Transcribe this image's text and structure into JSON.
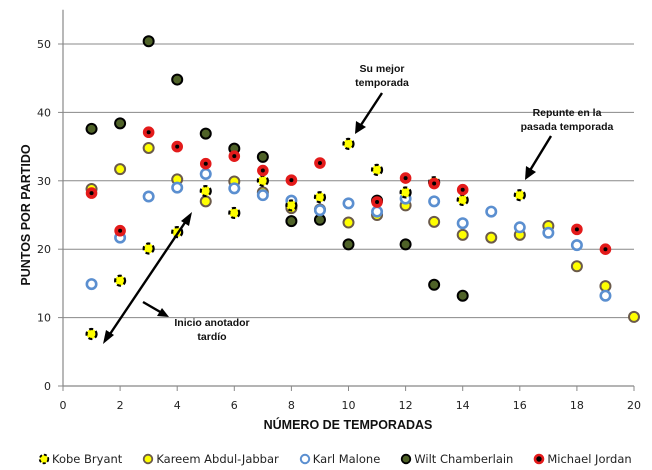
{
  "chart_data": {
    "type": "scatter",
    "title": "",
    "xlabel": "NÚMERO DE TEMPORADAS",
    "ylabel": "PUNTOS POR PARTIDO",
    "xlim": [
      0,
      20
    ],
    "ylim": [
      0,
      55
    ],
    "xticks": [
      0,
      2,
      4,
      6,
      8,
      10,
      12,
      14,
      16,
      18,
      20
    ],
    "yticks": [
      0,
      10,
      20,
      30,
      40,
      50
    ],
    "grid": "horizontal",
    "legend_position": "bottom",
    "series": [
      {
        "name": "Kobe Bryant",
        "marker": "yellow-dashed",
        "colors": {
          "fill": "#ffff00",
          "stroke": "#000000"
        },
        "points": [
          [
            1,
            7.6
          ],
          [
            2,
            15.4
          ],
          [
            3,
            20.1
          ],
          [
            4,
            22.5
          ],
          [
            5,
            28.5
          ],
          [
            6,
            25.3
          ],
          [
            7,
            30.0
          ],
          [
            8,
            26.4
          ],
          [
            9,
            27.6
          ],
          [
            10,
            35.4
          ],
          [
            11,
            31.6
          ],
          [
            12,
            28.3
          ],
          [
            13,
            29.8
          ],
          [
            14,
            27.2
          ],
          [
            16,
            27.9
          ]
        ]
      },
      {
        "name": "Kareem Abdul-Jabbar",
        "marker": "yellow-brown-ring",
        "colors": {
          "fill": "#ffff00",
          "stroke": "#6b5a4a"
        },
        "points": [
          [
            1,
            28.8
          ],
          [
            2,
            31.7
          ],
          [
            3,
            34.8
          ],
          [
            4,
            30.2
          ],
          [
            5,
            27.0
          ],
          [
            6,
            29.9
          ],
          [
            7,
            28.3
          ],
          [
            8,
            26.0
          ],
          [
            9,
            25.8
          ],
          [
            10,
            23.9
          ],
          [
            11,
            25.0
          ],
          [
            12,
            26.4
          ],
          [
            13,
            24.0
          ],
          [
            14,
            22.1
          ],
          [
            15,
            21.7
          ],
          [
            16,
            22.1
          ],
          [
            17,
            23.4
          ],
          [
            18,
            17.5
          ],
          [
            19,
            14.6
          ],
          [
            20,
            10.1
          ]
        ]
      },
      {
        "name": "Karl Malone",
        "marker": "blue-ring",
        "colors": {
          "fill": "#ffffff",
          "stroke": "#5b8fd0"
        },
        "points": [
          [
            1,
            14.9
          ],
          [
            2,
            21.7
          ],
          [
            3,
            27.7
          ],
          [
            4,
            29.0
          ],
          [
            5,
            31.0
          ],
          [
            6,
            28.9
          ],
          [
            7,
            27.9
          ],
          [
            8,
            27.1
          ],
          [
            9,
            25.7
          ],
          [
            10,
            26.7
          ],
          [
            11,
            25.5
          ],
          [
            12,
            27.4
          ],
          [
            13,
            27.0
          ],
          [
            14,
            23.8
          ],
          [
            15,
            25.5
          ],
          [
            16,
            23.2
          ],
          [
            17,
            22.4
          ],
          [
            18,
            20.6
          ],
          [
            19,
            13.2
          ]
        ]
      },
      {
        "name": "Wilt Chamberlain",
        "marker": "dark-green",
        "colors": {
          "fill": "#4f6228",
          "stroke": "#000000"
        },
        "points": [
          [
            1,
            37.6
          ],
          [
            2,
            38.4
          ],
          [
            3,
            50.4
          ],
          [
            4,
            44.8
          ],
          [
            5,
            36.9
          ],
          [
            6,
            34.7
          ],
          [
            7,
            33.5
          ],
          [
            8,
            24.1
          ],
          [
            9,
            24.3
          ],
          [
            10,
            20.7
          ],
          [
            11,
            27.1
          ],
          [
            12,
            20.7
          ],
          [
            13,
            14.8
          ],
          [
            14,
            13.2
          ]
        ]
      },
      {
        "name": "Michael Jordan",
        "marker": "red-black-center",
        "colors": {
          "fill": "#000000",
          "stroke": "#e31b1b"
        },
        "points": [
          [
            1,
            28.2
          ],
          [
            2,
            22.7
          ],
          [
            3,
            37.1
          ],
          [
            4,
            35.0
          ],
          [
            5,
            32.5
          ],
          [
            6,
            33.6
          ],
          [
            7,
            31.5
          ],
          [
            8,
            30.1
          ],
          [
            9,
            32.6
          ],
          [
            11,
            26.9
          ],
          [
            12,
            30.4
          ],
          [
            13,
            29.6
          ],
          [
            14,
            28.7
          ],
          [
            18,
            22.9
          ],
          [
            19,
            20.0
          ]
        ]
      }
    ],
    "annotations": [
      {
        "text_lines": [
          "Su mejor",
          "temporada"
        ],
        "points_to": [
          10,
          35.4
        ]
      },
      {
        "text_lines": [
          "Repunte en la",
          "pasada temporada"
        ],
        "points_to": [
          16,
          27.9
        ]
      },
      {
        "text_lines": [
          "Inicio anotador",
          "tardío"
        ],
        "points_to_range": [
          [
            1.2,
            6
          ],
          [
            4.5,
            25
          ]
        ]
      }
    ]
  }
}
